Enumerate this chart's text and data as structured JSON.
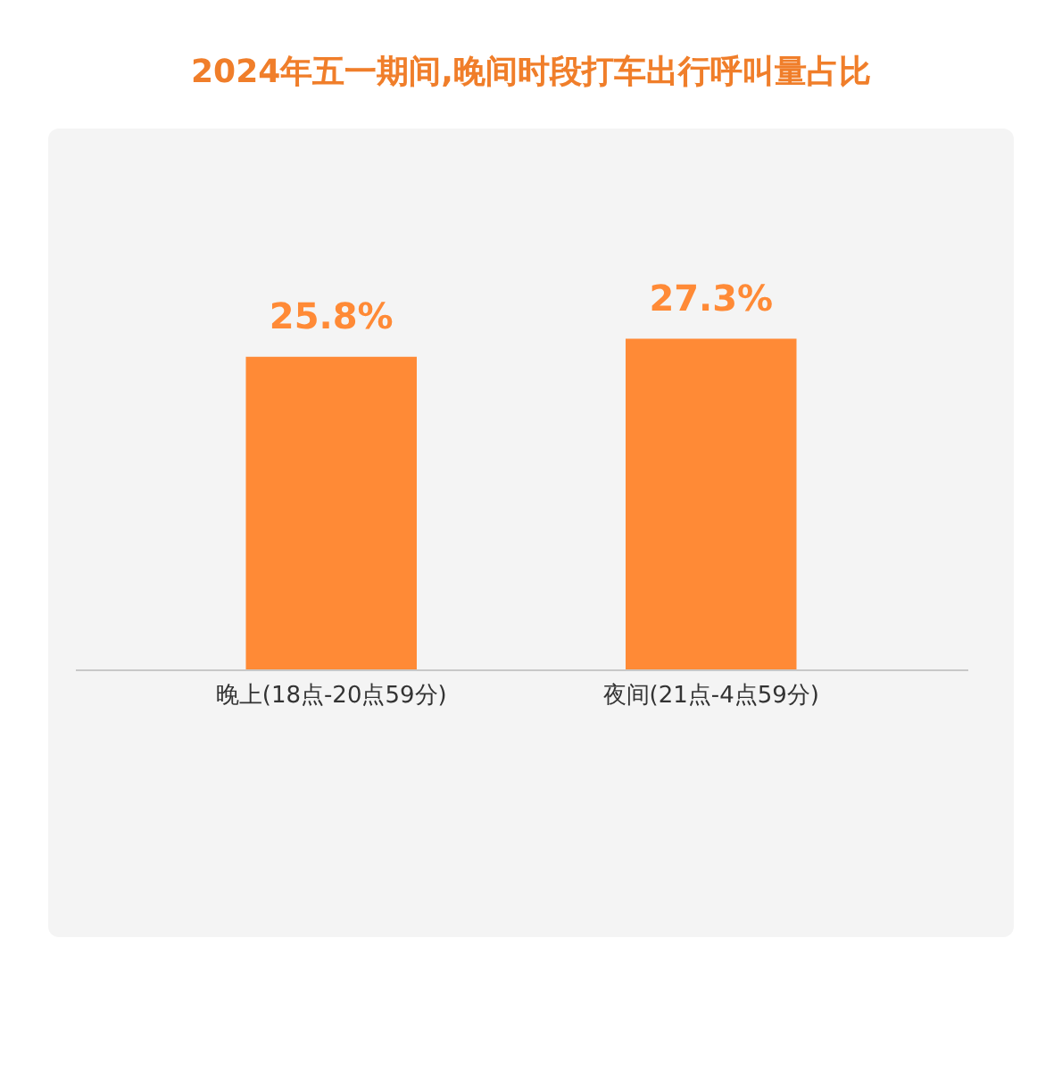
{
  "chart_data": {
    "type": "bar",
    "title": "2024年五一期间,晚间时段打车出行呼叫量占比",
    "categories": [
      "晚上(18点-20点59分)",
      "夜间(21点-4点59分)"
    ],
    "values": [
      25.8,
      27.3
    ],
    "color": "#ff8a36",
    "value_labels": [
      "25.8%",
      "27.3%"
    ]
  }
}
